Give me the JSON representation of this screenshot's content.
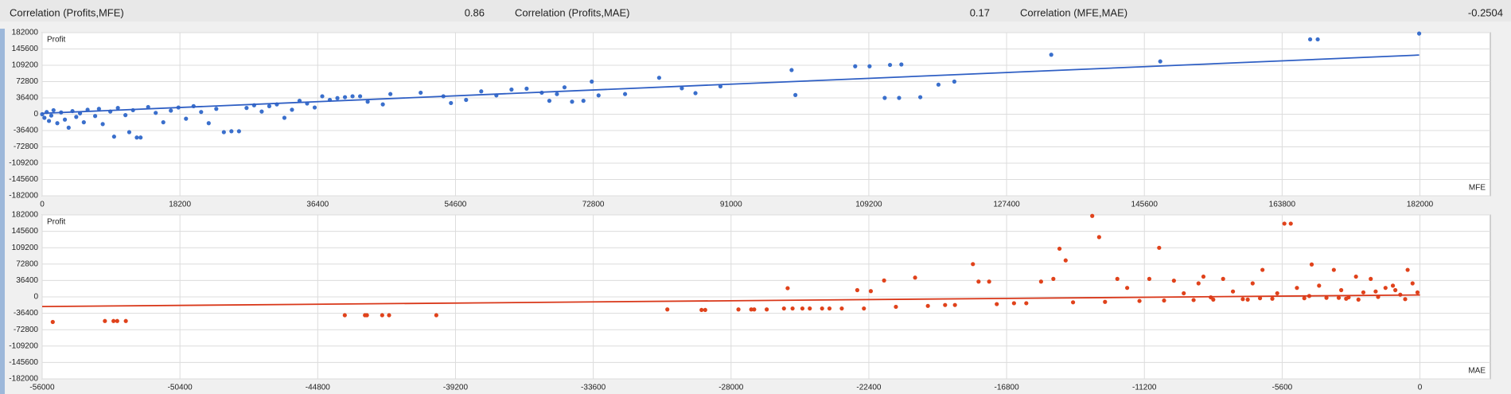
{
  "header": {
    "items": [
      {
        "label": "Correlation (Profits,MFE)",
        "value": 0.86
      },
      {
        "label": "Correlation (Profits,MAE)",
        "value": 0.17
      },
      {
        "label": "Correlation (MFE,MAE)",
        "value": -0.2504
      }
    ]
  },
  "chart_data": [
    {
      "type": "scatter",
      "xlabel": "MFE",
      "ylabel": "Profit",
      "color": "#3a6fcc",
      "grid": true,
      "xlim": [
        0,
        191300
      ],
      "ylim": [
        -182000,
        182000
      ],
      "xticks": [
        0,
        18200,
        36400,
        54600,
        72800,
        91000,
        109200,
        127400,
        145600,
        163800,
        182000
      ],
      "yticks": [
        182000,
        145600,
        109200,
        72800,
        36400,
        0,
        -36400,
        -72800,
        -109200,
        -145600,
        -182000
      ],
      "x": [
        0,
        300,
        600,
        900,
        1200,
        1500,
        2000,
        2500,
        3000,
        3500,
        4000,
        4500,
        5000,
        5500,
        6000,
        7000,
        7500,
        8000,
        9000,
        9500,
        10000,
        11000,
        11500,
        12000,
        12500,
        13000,
        14000,
        15000,
        16000,
        17000,
        18000,
        19000,
        20000,
        21000,
        22000,
        23000,
        24000,
        25000,
        26000,
        27000,
        28000,
        29000,
        30000,
        31000,
        32000,
        33000,
        34000,
        35000,
        36000,
        37000,
        38000,
        39000,
        40000,
        41000,
        42000,
        43000,
        45000,
        46000,
        50000,
        53000,
        54000,
        56000,
        58000,
        60000,
        62000,
        64000,
        66000,
        67000,
        68000,
        69000,
        70000,
        71500,
        72600,
        73500,
        77000,
        81500,
        84500,
        86300,
        89600,
        99000,
        99500,
        107400,
        109300,
        111300,
        112000,
        113200,
        113500,
        116000,
        118400,
        120500,
        133300,
        147700,
        167500,
        168500,
        181900
      ],
      "values": [
        0,
        -8000,
        5000,
        -15000,
        -3000,
        9000,
        -20000,
        4000,
        -12000,
        -30000,
        7000,
        -6000,
        2000,
        -18000,
        10000,
        -4000,
        12000,
        -22000,
        6000,
        -50000,
        14000,
        -2000,
        -40000,
        9000,
        -52000,
        -52000,
        16000,
        3000,
        -18000,
        8000,
        15000,
        -10000,
        18000,
        5000,
        -20000,
        12000,
        -40000,
        -38000,
        -38000,
        14000,
        20000,
        6000,
        18000,
        22000,
        -8000,
        10000,
        30000,
        24000,
        15000,
        40000,
        32000,
        36000,
        38000,
        40000,
        40000,
        28000,
        22000,
        45000,
        48000,
        40000,
        25000,
        32000,
        51000,
        42000,
        55000,
        57000,
        48000,
        30000,
        45000,
        60000,
        28000,
        30000,
        72800,
        42000,
        45000,
        81300,
        57800,
        47000,
        62000,
        98500,
        42800,
        107000,
        107000,
        36400,
        110000,
        36400,
        111000,
        38000,
        66000,
        72800,
        132700,
        117800,
        167000,
        167000,
        180000
      ],
      "trendline": {
        "x": [
          0,
          181900
        ],
        "y": [
          2000,
          132000
        ],
        "color": "#2f5fc4"
      }
    },
    {
      "type": "scatter",
      "xlabel": "MAE",
      "ylabel": "Profit",
      "color": "#e0421b",
      "grid": true,
      "xlim": [
        -56000,
        2860
      ],
      "ylim": [
        -182000,
        182000
      ],
      "xticks": [
        -56000,
        -50400,
        -44800,
        -39200,
        -33600,
        -28000,
        -22400,
        -16800,
        -11200,
        -5600,
        0
      ],
      "yticks": [
        182000,
        145600,
        109200,
        72800,
        36400,
        0,
        -36400,
        -72800,
        -109200,
        -145600,
        -182000
      ],
      "x": [
        -55570,
        -53450,
        -53100,
        -52950,
        -52600,
        -43700,
        -42880,
        -42800,
        -42180,
        -41900,
        -39980,
        -30590,
        -29200,
        -29050,
        -27700,
        -27180,
        -27060,
        -26550,
        -25850,
        -25700,
        -25500,
        -25100,
        -24800,
        -24300,
        -24000,
        -23500,
        -22870,
        -22600,
        -22320,
        -21780,
        -21300,
        -20520,
        -20000,
        -19300,
        -18900,
        -18170,
        -17940,
        -17510,
        -17200,
        -16500,
        -16000,
        -15400,
        -14900,
        -14650,
        -14400,
        -14100,
        -13320,
        -13040,
        -12800,
        -12300,
        -11900,
        -11400,
        -11000,
        -10600,
        -10400,
        -10000,
        -9600,
        -9200,
        -8800,
        -8400,
        -8000,
        -7600,
        -7200,
        -6800,
        -6400,
        -6000,
        -5510,
        -5250,
        -5000,
        -4700,
        -4400,
        -4100,
        -3800,
        -3500,
        -3200,
        -2900,
        -2600,
        -2300,
        -2000,
        -1700,
        -1400,
        -1100,
        -800,
        -500,
        -300,
        -100,
        -2500,
        -4500,
        -6500,
        -8500,
        -1000,
        -3000,
        -5800,
        -7000,
        -9000,
        -600,
        -1800,
        -3300
      ],
      "values": [
        -55700,
        -53500,
        -53500,
        -53500,
        -53500,
        -40700,
        -40700,
        -40700,
        -40700,
        -40700,
        -40700,
        -27800,
        -29000,
        -29000,
        -27800,
        -27800,
        -27800,
        -27800,
        -25700,
        19300,
        -25700,
        -25700,
        -25700,
        -25700,
        -25700,
        -25700,
        15000,
        -25700,
        12800,
        36400,
        -22000,
        42800,
        -20000,
        -18000,
        -18000,
        72800,
        34000,
        34000,
        -16000,
        -14000,
        -14000,
        34000,
        40000,
        107000,
        81000,
        -12000,
        179800,
        132700,
        -11000,
        40000,
        20000,
        -9000,
        40000,
        109000,
        -8000,
        36000,
        8000,
        -7000,
        45000,
        -6000,
        40000,
        12000,
        -5000,
        30000,
        60000,
        -4000,
        162700,
        162700,
        20000,
        -3000,
        72000,
        25000,
        -2000,
        60000,
        15000,
        -1000,
        45000,
        10000,
        40000,
        0,
        20000,
        25000,
        5000,
        60000,
        30000,
        10000,
        -6000,
        2000,
        -3000,
        -1000,
        15000,
        -4000,
        8000,
        -6000,
        30000,
        -5000,
        12000,
        -2000
      ],
      "trendline": {
        "x": [
          -56000,
          0
        ],
        "y": [
          -21400,
          4300
        ],
        "color": "#d9381a"
      }
    }
  ]
}
